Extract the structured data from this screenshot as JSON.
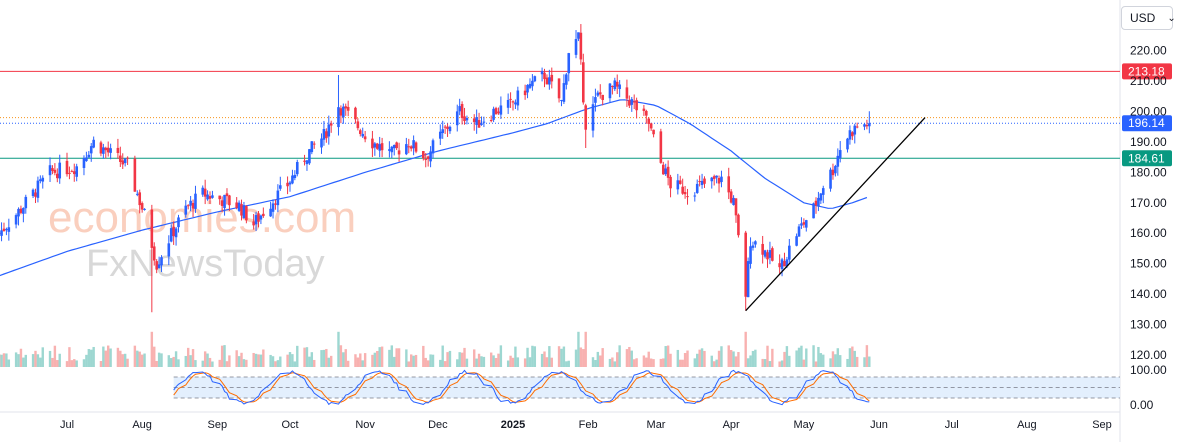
{
  "currency_selector": {
    "label": "USD",
    "icon": "chevron-down-icon"
  },
  "watermark": {
    "brand_line1": "economies.com",
    "brand_line2": "FxNewsToday"
  },
  "colors": {
    "bull": "#26a69a",
    "bear": "#ef5350",
    "candle_up": "#2962ff",
    "candle_down": "#f23645",
    "ma_line": "#2962ff",
    "resistance_line": "#f23645",
    "support_line": "#089981",
    "last_price": "#2962ff",
    "dotted_orange": "#f7931a",
    "trendline": "#000000",
    "stoch_k": "#2962ff",
    "stoch_d": "#ff6d00",
    "stoch_band": "#e3effd"
  },
  "chart_data": {
    "type": "candlestick",
    "x_axis_labels": [
      "Jul",
      "Aug",
      "Sep",
      "Oct",
      "Nov",
      "Dec",
      "2025",
      "Feb",
      "Mar",
      "Apr",
      "May",
      "Jun",
      "Jul",
      "Aug",
      "Sep"
    ],
    "y_axis_ticks": [
      120,
      130,
      140,
      150,
      160,
      170,
      180,
      190,
      200,
      210,
      220
    ],
    "y_tick_labels": [
      "120.00",
      "130.00",
      "140.00",
      "150.00",
      "160.00",
      "170.00",
      "180.00",
      "190.00",
      "200.00",
      "210.00",
      "220.00"
    ],
    "ylim": [
      116,
      236
    ],
    "price_levels": [
      {
        "name": "resistance",
        "value": 213.18,
        "label": "213.18"
      },
      {
        "name": "last-price",
        "value": 196.14,
        "label": "196.14"
      },
      {
        "name": "support",
        "value": 184.61,
        "label": "184.61"
      }
    ],
    "dotted_level": 198.0,
    "trendline": {
      "from": {
        "date": "2025-04-07",
        "value": 134.5
      },
      "to": {
        "date": "2025-06-20",
        "value": 198.0
      }
    },
    "price_anchors": [
      [
        "2024-06-03",
        160
      ],
      [
        "2024-06-12",
        168
      ],
      [
        "2024-06-24",
        180
      ],
      [
        "2024-07-05",
        182
      ],
      [
        "2024-07-12",
        190
      ],
      [
        "2024-07-19",
        186
      ],
      [
        "2024-07-26",
        182
      ],
      [
        "2024-08-02",
        166
      ],
      [
        "2024-08-07",
        150
      ],
      [
        "2024-08-12",
        158
      ],
      [
        "2024-08-19",
        168
      ],
      [
        "2024-08-26",
        173
      ],
      [
        "2024-09-03",
        171
      ],
      [
        "2024-09-10",
        169
      ],
      [
        "2024-09-16",
        163
      ],
      [
        "2024-09-23",
        170
      ],
      [
        "2024-09-30",
        176
      ],
      [
        "2024-10-08",
        186
      ],
      [
        "2024-10-15",
        192
      ],
      [
        "2024-10-21",
        202
      ],
      [
        "2024-10-28",
        196
      ],
      [
        "2024-11-04",
        190
      ],
      [
        "2024-11-12",
        186
      ],
      [
        "2024-11-19",
        190
      ],
      [
        "2024-11-26",
        185
      ],
      [
        "2024-12-03",
        193
      ],
      [
        "2024-12-10",
        200
      ],
      [
        "2024-12-17",
        196
      ],
      [
        "2024-12-24",
        200
      ],
      [
        "2024-12-31",
        202
      ],
      [
        "2025-01-07",
        208
      ],
      [
        "2025-01-14",
        212
      ],
      [
        "2025-01-21",
        203
      ],
      [
        "2025-01-24",
        220
      ],
      [
        "2025-01-28",
        224
      ],
      [
        "2025-01-31",
        196
      ],
      [
        "2025-02-05",
        205
      ],
      [
        "2025-02-12",
        208
      ],
      [
        "2025-02-19",
        203
      ],
      [
        "2025-02-26",
        196
      ],
      [
        "2025-03-03",
        183
      ],
      [
        "2025-03-07",
        176
      ],
      [
        "2025-03-14",
        174
      ],
      [
        "2025-03-21",
        176
      ],
      [
        "2025-03-28",
        178
      ],
      [
        "2025-04-02",
        170
      ],
      [
        "2025-04-04",
        158
      ],
      [
        "2025-04-07",
        140
      ],
      [
        "2025-04-09",
        158
      ],
      [
        "2025-04-14",
        155
      ],
      [
        "2025-04-21",
        148
      ],
      [
        "2025-04-28",
        160
      ],
      [
        "2025-05-05",
        168
      ],
      [
        "2025-05-09",
        176
      ],
      [
        "2025-05-13",
        181
      ],
      [
        "2025-05-16",
        188
      ],
      [
        "2025-05-20",
        193
      ],
      [
        "2025-05-23",
        195
      ],
      [
        "2025-05-28",
        196.14
      ]
    ],
    "moving_average_anchors": [
      [
        "2024-06-03",
        146
      ],
      [
        "2024-07-01",
        154
      ],
      [
        "2024-08-01",
        161
      ],
      [
        "2024-09-01",
        167
      ],
      [
        "2024-10-01",
        172
      ],
      [
        "2024-11-01",
        180
      ],
      [
        "2024-12-01",
        187
      ],
      [
        "2025-01-01",
        193
      ],
      [
        "2025-01-15",
        196
      ],
      [
        "2025-02-01",
        201
      ],
      [
        "2025-02-15",
        204
      ],
      [
        "2025-03-01",
        202
      ],
      [
        "2025-03-15",
        196
      ],
      [
        "2025-04-01",
        187
      ],
      [
        "2025-04-15",
        178
      ],
      [
        "2025-05-01",
        170
      ],
      [
        "2025-05-12",
        168
      ],
      [
        "2025-05-21",
        170
      ],
      [
        "2025-05-28",
        172
      ]
    ],
    "oscillator": {
      "type": "stochastic",
      "ticks": [
        100,
        0
      ],
      "tick_labels": [
        "100.00",
        "0.00"
      ],
      "band": [
        80,
        20
      ]
    }
  }
}
